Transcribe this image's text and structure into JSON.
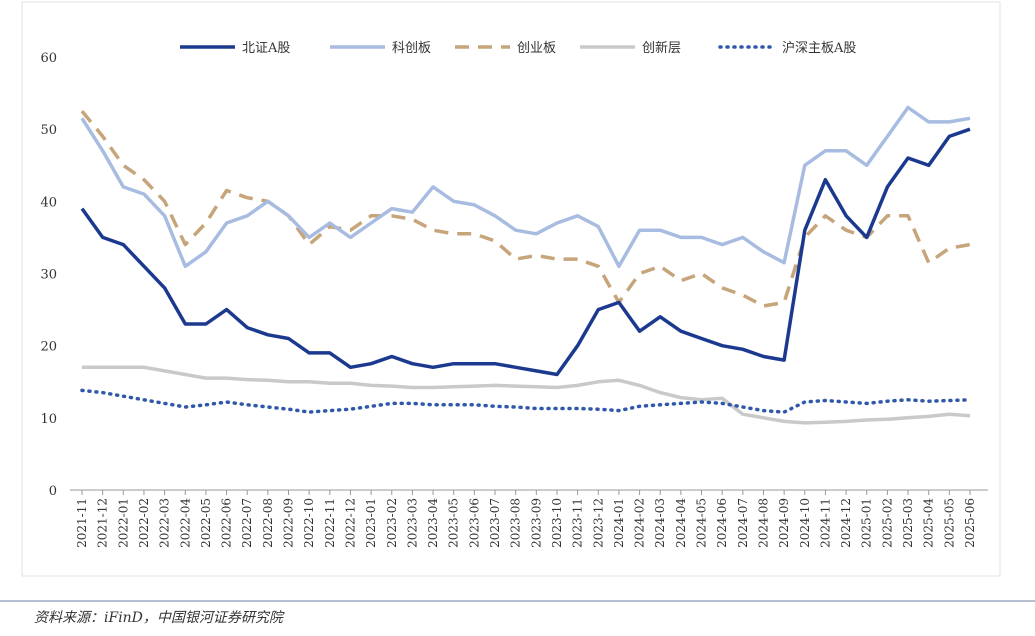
{
  "chart_data": {
    "type": "line",
    "categories": [
      "2021-11",
      "2021-12",
      "2022-01",
      "2022-02",
      "2022-03",
      "2022-04",
      "2022-05",
      "2022-06",
      "2022-07",
      "2022-08",
      "2022-09",
      "2022-10",
      "2022-11",
      "2022-12",
      "2023-01",
      "2023-02",
      "2023-03",
      "2023-04",
      "2023-05",
      "2023-06",
      "2023-07",
      "2023-08",
      "2023-09",
      "2023-10",
      "2023-11",
      "2023-12",
      "2024-01",
      "2024-02",
      "2024-03",
      "2024-04",
      "2024-05",
      "2024-06",
      "2024-07",
      "2024-08",
      "2024-09",
      "2024-10",
      "2024-11",
      "2024-12",
      "2025-01",
      "2025-02",
      "2025-03",
      "2025-04",
      "2025-05",
      "2025-06"
    ],
    "series": [
      {
        "name": "北证A股",
        "color": "#1b3a8f",
        "style": "solid",
        "values": [
          39,
          35,
          34,
          31,
          28,
          23,
          23,
          25,
          22.5,
          21.5,
          21,
          19,
          19,
          17,
          17.5,
          18.5,
          17.5,
          17,
          17.5,
          17.5,
          17.5,
          17,
          16.5,
          16,
          20,
          25,
          26,
          22,
          24,
          22,
          21,
          20,
          19.5,
          18.5,
          18,
          36,
          43,
          38,
          35,
          42,
          46,
          45,
          49,
          50
        ]
      },
      {
        "name": "科创板",
        "color": "#a7bce0",
        "style": "solid",
        "values": [
          51.5,
          47,
          42,
          41,
          38,
          31,
          33,
          37,
          38,
          40,
          38,
          35,
          37,
          35,
          37,
          39,
          38.5,
          42,
          40,
          39.5,
          38,
          36,
          35.5,
          37,
          38,
          36.5,
          31,
          36,
          36,
          35,
          35,
          34,
          35,
          33,
          31.5,
          45,
          47,
          47,
          45,
          49,
          53,
          51,
          51,
          51.5
        ]
      },
      {
        "name": "创业板",
        "color": "#c6a57a",
        "style": "dashed",
        "values": [
          52.5,
          49,
          45,
          43,
          40,
          34,
          37,
          41.5,
          40.5,
          40,
          38,
          34,
          36.5,
          36,
          38,
          38,
          37.5,
          36,
          35.5,
          35.5,
          34.5,
          32,
          32.5,
          32,
          32,
          31,
          26,
          30,
          31,
          29,
          30,
          28,
          27,
          25.5,
          26,
          35,
          38,
          36,
          35,
          38,
          38,
          31.5,
          33.5,
          34
        ]
      },
      {
        "name": "创新层",
        "color": "#c9c9c9",
        "style": "solid",
        "values": [
          17,
          17,
          17,
          17,
          16.5,
          16,
          15.5,
          15.5,
          15.3,
          15.2,
          15,
          15,
          14.8,
          14.8,
          14.5,
          14.4,
          14.2,
          14.2,
          14.3,
          14.4,
          14.5,
          14.4,
          14.3,
          14.2,
          14.5,
          15,
          15.2,
          14.5,
          13.5,
          12.8,
          12.5,
          12.7,
          10.5,
          10,
          9.5,
          9.3,
          9.4,
          9.5,
          9.7,
          9.8,
          10,
          10.2,
          10.5,
          10.3
        ]
      },
      {
        "name": "沪深主板A股",
        "color": "#2f58ab",
        "style": "dotted",
        "values": [
          13.8,
          13.5,
          13,
          12.5,
          12,
          11.5,
          11.8,
          12.2,
          11.8,
          11.5,
          11.2,
          10.8,
          11,
          11.2,
          11.6,
          12,
          12,
          11.8,
          11.8,
          11.8,
          11.6,
          11.5,
          11.3,
          11.3,
          11.3,
          11.2,
          11,
          11.6,
          11.8,
          12,
          12.2,
          12,
          11.5,
          11,
          10.8,
          12.2,
          12.4,
          12.2,
          12,
          12.3,
          12.5,
          12.3,
          12.4,
          12.5
        ]
      }
    ],
    "ylim": [
      0,
      60
    ],
    "yticks": [
      0,
      10,
      20,
      30,
      40,
      50,
      60
    ],
    "legend": "top",
    "source": "资料来源：iFinD，中国银河证券研究院"
  }
}
